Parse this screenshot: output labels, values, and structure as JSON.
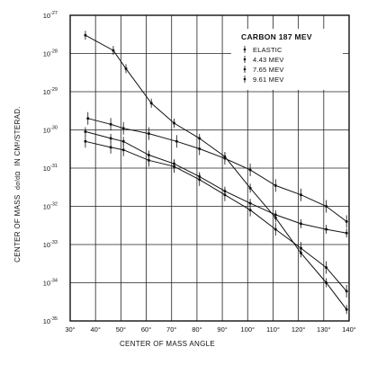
{
  "chart_data": {
    "type": "scatter",
    "title": "CARBON 187 MEV",
    "xlabel": "CENTER OF MASS ANGLE",
    "ylabel_parts": [
      "CENTER OF MASS",
      "dσ",
      "dΩ",
      "IN CM²/STERAD."
    ],
    "xlim": [
      30,
      140
    ],
    "ylim_exponent": [
      -35,
      -27
    ],
    "yscale": "log",
    "grid": true,
    "legend_position": "top-right",
    "x_ticks": [
      "30°",
      "40°",
      "50°",
      "60°",
      "70°",
      "80°",
      "90°",
      "100°",
      "110°",
      "120°",
      "130°",
      "140°"
    ],
    "y_ticks": [
      {
        "base": "10",
        "exp": "-27"
      },
      {
        "base": "10",
        "exp": "-28"
      },
      {
        "base": "10",
        "exp": "-29"
      },
      {
        "base": "10",
        "exp": "-30"
      },
      {
        "base": "10",
        "exp": "-31"
      },
      {
        "base": "10",
        "exp": "-32"
      },
      {
        "base": "10",
        "exp": "-33"
      },
      {
        "base": "10",
        "exp": "-34"
      },
      {
        "base": "10",
        "exp": "-35"
      }
    ],
    "series": [
      {
        "name": "ELASTIC",
        "x": [
          36,
          47,
          52,
          62,
          71,
          81,
          91,
          101,
          111,
          121,
          131,
          139
        ],
        "y": [
          3e-28,
          1.2e-28,
          4e-29,
          5e-30,
          1.5e-30,
          6e-31,
          2e-31,
          3e-32,
          5e-33,
          6e-34,
          1e-34,
          2e-35
        ]
      },
      {
        "name": "4.43 MEV",
        "x": [
          37,
          46,
          51,
          61,
          72,
          81,
          91,
          101,
          111,
          121,
          131,
          139
        ],
        "y": [
          2e-30,
          1.4e-30,
          1.1e-30,
          8e-31,
          5e-31,
          3.2e-31,
          1.8e-31,
          9e-32,
          3.5e-32,
          2e-32,
          1e-32,
          4e-33
        ]
      },
      {
        "name": "7.65 MEV",
        "x": [
          36,
          46,
          51,
          61,
          71,
          81,
          91,
          101,
          111,
          121,
          131,
          139
        ],
        "y": [
          9e-31,
          6e-31,
          5e-31,
          2.2e-31,
          1.3e-31,
          6e-32,
          2.5e-32,
          1.2e-32,
          6e-33,
          3.5e-33,
          2.5e-33,
          2e-33
        ]
      },
      {
        "name": "9.61 MEV",
        "x": [
          36,
          46,
          51,
          61,
          71,
          81,
          91,
          101,
          111,
          121,
          131,
          139
        ],
        "y": [
          5e-31,
          3.5e-31,
          3e-31,
          1.6e-31,
          1.1e-31,
          5e-32,
          2e-32,
          8e-33,
          2.5e-33,
          8e-34,
          2.5e-34,
          6e-35
        ]
      }
    ]
  }
}
